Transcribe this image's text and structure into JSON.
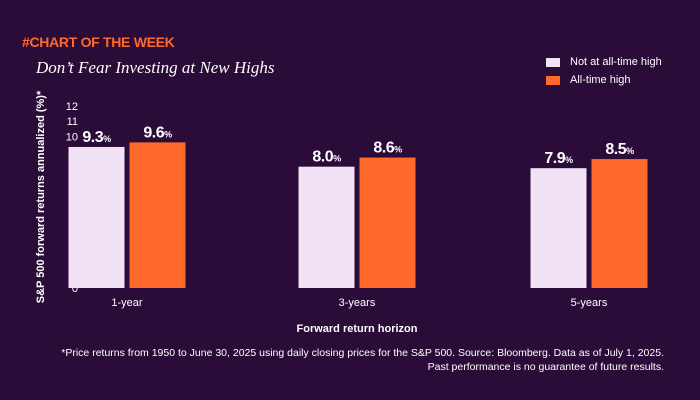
{
  "header": {
    "tag": "#CHART OF THE WEEK",
    "title": "Don’t Fear Investing at New Highs"
  },
  "colors": {
    "background": "#2b0b38",
    "accent": "#ff6a2b",
    "series_light": "#f1e3f5",
    "series_orange": "#ff6a2b"
  },
  "chart_data": {
    "type": "bar",
    "categories": [
      "1-year",
      "3-years",
      "5-years"
    ],
    "series": [
      {
        "name": "Not at all-time high",
        "values": [
          9.3,
          8.0,
          7.9
        ],
        "labels": [
          "9.3",
          "8.0",
          "7.9"
        ],
        "color": "#f1e3f5"
      },
      {
        "name": "All-time high",
        "values": [
          9.6,
          8.6,
          8.5
        ],
        "labels": [
          "9.6",
          "8.6",
          "8.5"
        ],
        "color": "#ff6a2b"
      }
    ],
    "value_suffix": "%",
    "xlabel": "Forward return horizon",
    "ylabel": "S&P 500 forward returns annualized (%)*",
    "ylim": [
      0,
      12
    ],
    "yticks": [
      0,
      1,
      2,
      3,
      4,
      5,
      6,
      7,
      8,
      9,
      10,
      11,
      12
    ],
    "grid": false,
    "legend_position": "top-right"
  },
  "footnote": {
    "line1": "*Price returns from 1950 to June 30, 2025 using daily closing prices for the S&P 500. Source: Bloomberg. Data as of July 1, 2025.",
    "line2": "Past performance is no guarantee of future results."
  }
}
